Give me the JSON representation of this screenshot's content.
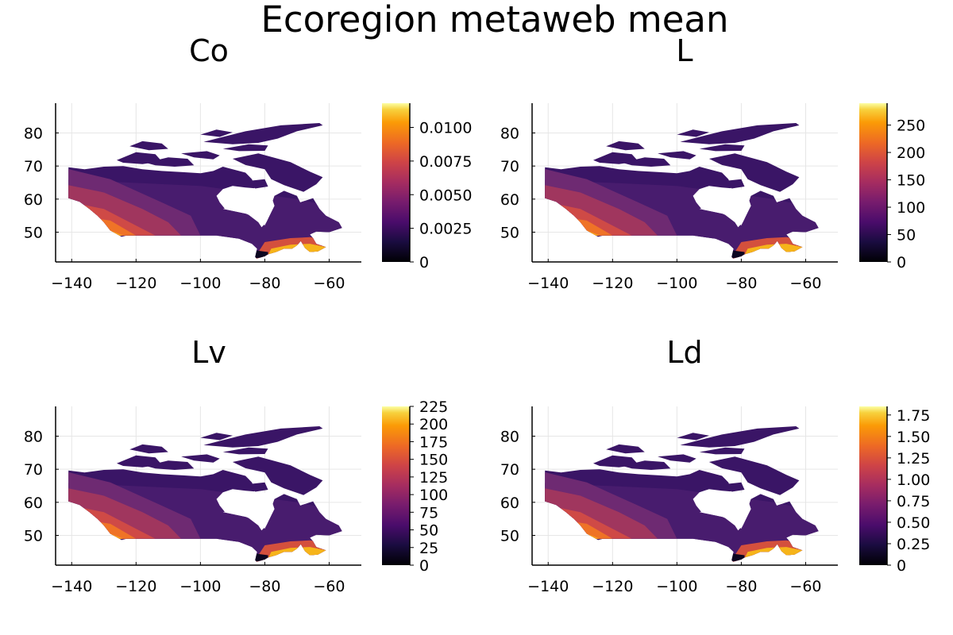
{
  "figure": {
    "suptitle": "Ecoregion metaweb mean"
  },
  "chart_data": [
    {
      "type": "heatmap",
      "title": "Co",
      "xlabel": "",
      "ylabel": "",
      "xlim": [
        -145,
        -50
      ],
      "ylim": [
        41,
        89
      ],
      "x_ticks": [
        -140,
        -120,
        -100,
        -80,
        -60
      ],
      "x_tick_labels": [
        "−140",
        "−120",
        "−100",
        "−80",
        "−60"
      ],
      "y_ticks": [
        50,
        60,
        70,
        80
      ],
      "y_tick_labels": [
        "50",
        "60",
        "70",
        "80"
      ],
      "colorbar": {
        "min": 0,
        "max": 0.0118,
        "ticks": [
          0,
          0.0025,
          0.005,
          0.0075,
          0.01
        ],
        "tick_labels": [
          "0",
          "0.0025",
          "0.0050",
          "0.0075",
          "0.0100"
        ]
      },
      "grid": true
    },
    {
      "type": "heatmap",
      "title": "L",
      "xlabel": "",
      "ylabel": "",
      "xlim": [
        -145,
        -50
      ],
      "ylim": [
        41,
        89
      ],
      "x_ticks": [
        -140,
        -120,
        -100,
        -80,
        -60
      ],
      "x_tick_labels": [
        "−140",
        "−120",
        "−100",
        "−80",
        "−60"
      ],
      "y_ticks": [
        50,
        60,
        70,
        80
      ],
      "y_tick_labels": [
        "50",
        "60",
        "70",
        "80"
      ],
      "colorbar": {
        "min": 0,
        "max": 290,
        "ticks": [
          0,
          50,
          100,
          150,
          200,
          250
        ],
        "tick_labels": [
          "0",
          "50",
          "100",
          "150",
          "200",
          "250"
        ]
      },
      "grid": true
    },
    {
      "type": "heatmap",
      "title": "Lv",
      "xlabel": "",
      "ylabel": "",
      "xlim": [
        -145,
        -50
      ],
      "ylim": [
        41,
        89
      ],
      "x_ticks": [
        -140,
        -120,
        -100,
        -80,
        -60
      ],
      "x_tick_labels": [
        "−140",
        "−120",
        "−100",
        "−80",
        "−60"
      ],
      "y_ticks": [
        50,
        60,
        70,
        80
      ],
      "y_tick_labels": [
        "50",
        "60",
        "70",
        "80"
      ],
      "colorbar": {
        "min": 0,
        "max": 225,
        "ticks": [
          0,
          25,
          50,
          75,
          100,
          125,
          150,
          175,
          200,
          225
        ],
        "tick_labels": [
          "0",
          "25",
          "50",
          "75",
          "100",
          "125",
          "150",
          "175",
          "200",
          "225"
        ]
      },
      "grid": true
    },
    {
      "type": "heatmap",
      "title": "Ld",
      "xlabel": "",
      "ylabel": "",
      "xlim": [
        -145,
        -50
      ],
      "ylim": [
        41,
        89
      ],
      "x_ticks": [
        -140,
        -120,
        -100,
        -80,
        -60
      ],
      "x_tick_labels": [
        "−140",
        "−120",
        "−100",
        "−80",
        "−60"
      ],
      "y_ticks": [
        50,
        60,
        70,
        80
      ],
      "y_tick_labels": [
        "50",
        "60",
        "70",
        "80"
      ],
      "colorbar": {
        "min": 0,
        "max": 1.85,
        "ticks": [
          0,
          0.25,
          0.5,
          0.75,
          1,
          1.25,
          1.5,
          1.75
        ],
        "tick_labels": [
          "0",
          "0.25",
          "0.50",
          "0.75",
          "1.00",
          "1.25",
          "1.50",
          "1.75"
        ]
      },
      "grid": true
    }
  ],
  "colors": {
    "colormap": "inferno",
    "axis": "#000000",
    "grid": "#e6e6e6",
    "north": "#3a1566",
    "mid": "#481c6e",
    "west1": "#6e2a72",
    "west2": "#a0365e",
    "west3": "#cf4a46",
    "west4": "#ef7327",
    "west5": "#f9a81c",
    "southeast": "#f6b41a",
    "southeast_mid": "#d4503d",
    "niagara": "#0c0620"
  }
}
